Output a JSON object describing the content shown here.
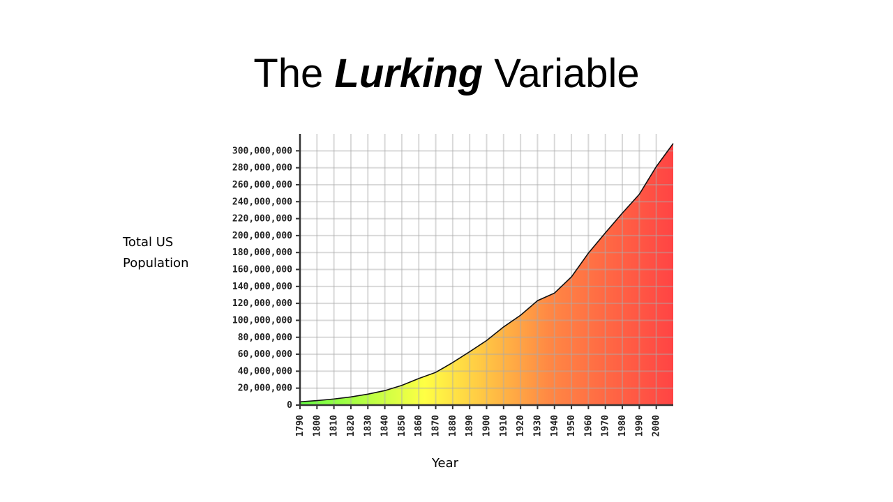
{
  "title_parts": [
    "The",
    "Lurking",
    "Variable"
  ],
  "chart_data": {
    "type": "area",
    "y_label": "Total US Population",
    "x_label": "Year",
    "x": [
      1790,
      1800,
      1810,
      1820,
      1830,
      1840,
      1850,
      1860,
      1870,
      1880,
      1890,
      1900,
      1910,
      1920,
      1930,
      1940,
      1950,
      1960,
      1970,
      1980,
      1990,
      2000,
      2010
    ],
    "values": [
      3900000,
      5300000,
      7200000,
      9600000,
      12900000,
      17100000,
      23200000,
      31400000,
      38600000,
      50200000,
      63000000,
      76200000,
      92200000,
      106000000,
      123200000,
      132200000,
      151300000,
      179300000,
      203300000,
      226500000,
      248700000,
      281400000,
      308700000
    ],
    "xlim": [
      1790,
      2010
    ],
    "ylim": [
      0,
      320000000
    ],
    "xticks": [
      1790,
      1800,
      1810,
      1820,
      1830,
      1840,
      1850,
      1860,
      1870,
      1880,
      1890,
      1900,
      1910,
      1920,
      1930,
      1940,
      1950,
      1960,
      1970,
      1980,
      1990,
      2000
    ],
    "yticks": [
      0,
      {
        "value": 20000000,
        "label": "20,000,000"
      },
      {
        "value": 40000000,
        "label": "40,000,000"
      },
      {
        "value": 60000000,
        "label": "60,000,000"
      },
      {
        "value": 80000000,
        "label": "80,000,000"
      },
      {
        "value": 100000000,
        "label": "100,000,000"
      },
      {
        "value": 120000000,
        "label": "120,000,000"
      },
      {
        "value": 140000000,
        "label": "140,000,000"
      },
      {
        "value": 160000000,
        "label": "160,000,000"
      },
      {
        "value": 180000000,
        "label": "180,000,000"
      },
      {
        "value": 200000000,
        "label": "200,000,000"
      },
      {
        "value": 220000000,
        "label": "220,000,000"
      },
      {
        "value": 240000000,
        "label": "240,000,000"
      },
      {
        "value": 260000000,
        "label": "260,000,000"
      },
      {
        "value": 280000000,
        "label": "280,000,000"
      },
      {
        "value": 300000000,
        "label": "300,000,000"
      }
    ],
    "grid": true,
    "gradient": [
      "#66ff44",
      "#ffff44",
      "#ff8844",
      "#ff4444"
    ],
    "line_color": "#111111"
  }
}
